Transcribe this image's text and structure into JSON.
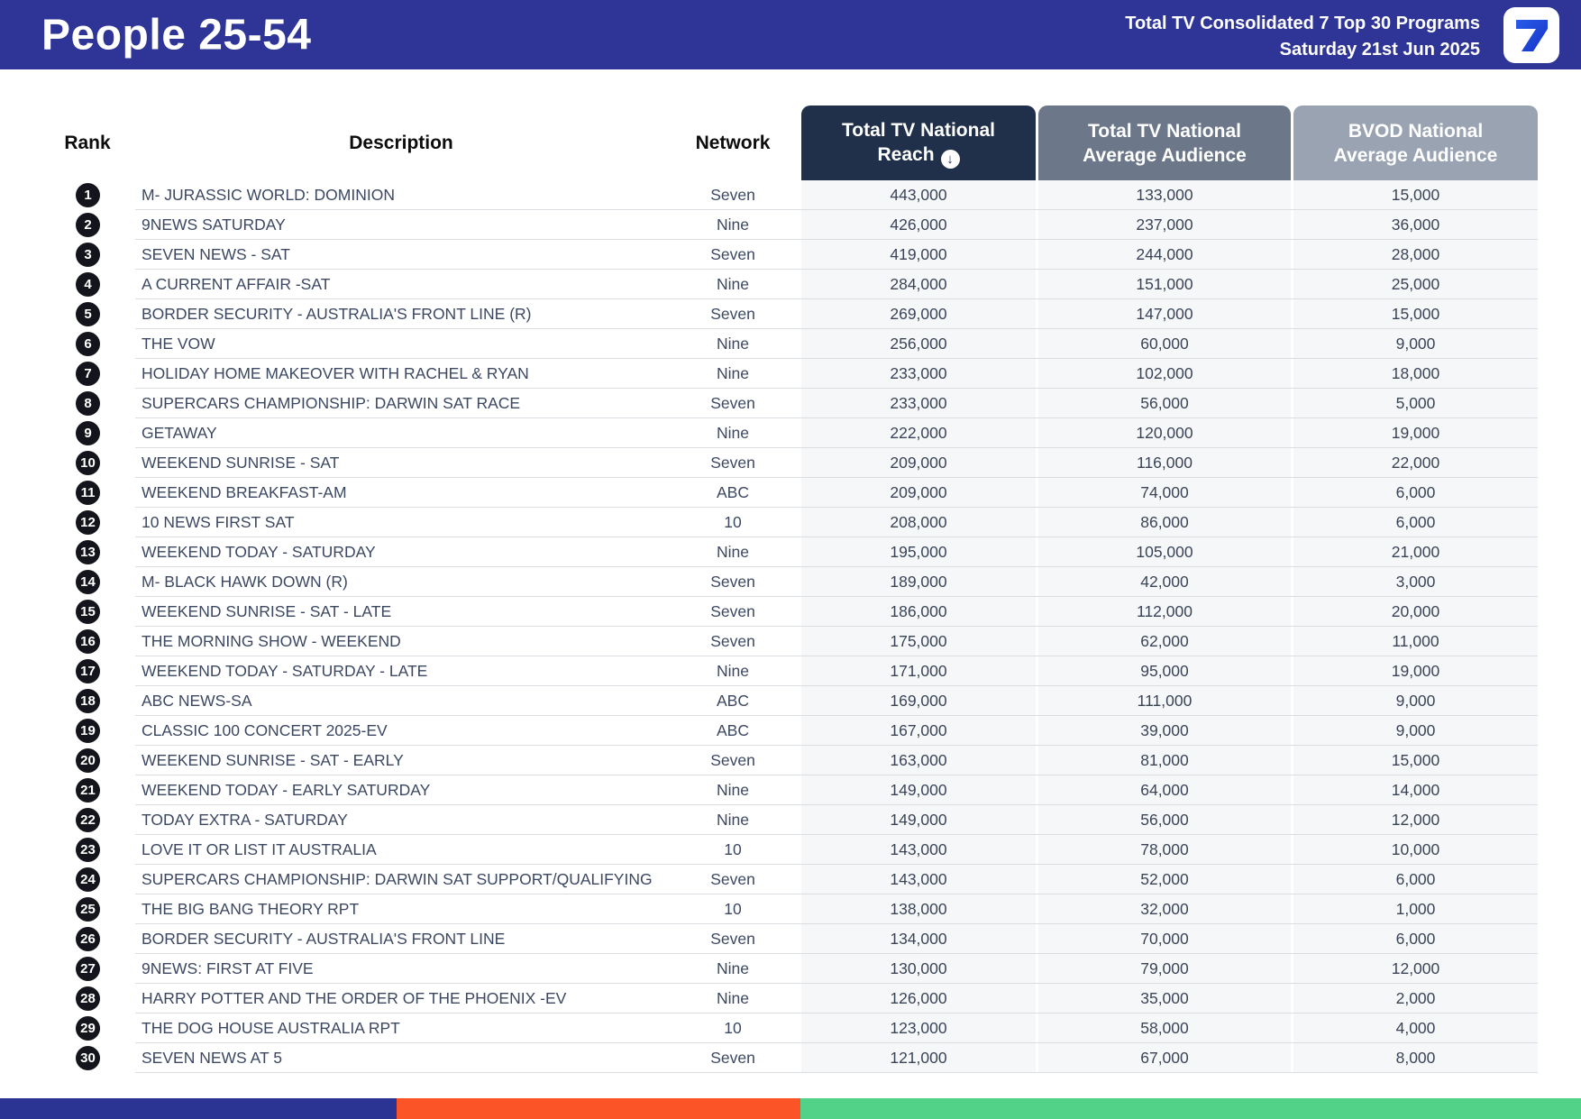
{
  "header": {
    "title": "People 25-54",
    "subtitle_line1": "Total TV Consolidated 7 Top 30 Programs",
    "subtitle_line2": "Saturday 21st Jun 2025",
    "logo_text": "7",
    "background_color": "#2E3596"
  },
  "table": {
    "columns": {
      "rank": "Rank",
      "description": "Description",
      "network": "Network",
      "reach_line1": "Total TV National",
      "reach_line2": "Reach",
      "avg_line1": "Total TV National",
      "avg_line2": "Average Audience",
      "bvod_line1": "BVOD National",
      "bvod_line2": "Average Audience"
    },
    "sort_icon": "circle-down-arrow",
    "sort_icon_glyph": "↓",
    "header_colors": {
      "reach": "#20304A",
      "avg": "#6C7889",
      "bvod": "#99A3B1"
    },
    "rows": [
      {
        "rank": "1",
        "description": "M- JURASSIC WORLD: DOMINION",
        "network": "Seven",
        "reach": "443,000",
        "avg": "133,000",
        "bvod": "15,000"
      },
      {
        "rank": "2",
        "description": "9NEWS SATURDAY",
        "network": "Nine",
        "reach": "426,000",
        "avg": "237,000",
        "bvod": "36,000"
      },
      {
        "rank": "3",
        "description": "SEVEN NEWS - SAT",
        "network": "Seven",
        "reach": "419,000",
        "avg": "244,000",
        "bvod": "28,000"
      },
      {
        "rank": "4",
        "description": "A CURRENT AFFAIR -SAT",
        "network": "Nine",
        "reach": "284,000",
        "avg": "151,000",
        "bvod": "25,000"
      },
      {
        "rank": "5",
        "description": "BORDER SECURITY - AUSTRALIA'S FRONT LINE (R)",
        "network": "Seven",
        "reach": "269,000",
        "avg": "147,000",
        "bvod": "15,000"
      },
      {
        "rank": "6",
        "description": "THE VOW",
        "network": "Nine",
        "reach": "256,000",
        "avg": "60,000",
        "bvod": "9,000"
      },
      {
        "rank": "7",
        "description": "HOLIDAY HOME MAKEOVER WITH RACHEL & RYAN",
        "network": "Nine",
        "reach": "233,000",
        "avg": "102,000",
        "bvod": "18,000"
      },
      {
        "rank": "8",
        "description": "SUPERCARS CHAMPIONSHIP: DARWIN SAT RACE",
        "network": "Seven",
        "reach": "233,000",
        "avg": "56,000",
        "bvod": "5,000"
      },
      {
        "rank": "9",
        "description": "GETAWAY",
        "network": "Nine",
        "reach": "222,000",
        "avg": "120,000",
        "bvod": "19,000"
      },
      {
        "rank": "10",
        "description": "WEEKEND SUNRISE - SAT",
        "network": "Seven",
        "reach": "209,000",
        "avg": "116,000",
        "bvod": "22,000"
      },
      {
        "rank": "11",
        "description": "WEEKEND BREAKFAST-AM",
        "network": "ABC",
        "reach": "209,000",
        "avg": "74,000",
        "bvod": "6,000"
      },
      {
        "rank": "12",
        "description": "10 NEWS FIRST SAT",
        "network": "10",
        "reach": "208,000",
        "avg": "86,000",
        "bvod": "6,000"
      },
      {
        "rank": "13",
        "description": "WEEKEND TODAY - SATURDAY",
        "network": "Nine",
        "reach": "195,000",
        "avg": "105,000",
        "bvod": "21,000"
      },
      {
        "rank": "14",
        "description": "M- BLACK HAWK DOWN (R)",
        "network": "Seven",
        "reach": "189,000",
        "avg": "42,000",
        "bvod": "3,000"
      },
      {
        "rank": "15",
        "description": "WEEKEND SUNRISE - SAT - LATE",
        "network": "Seven",
        "reach": "186,000",
        "avg": "112,000",
        "bvod": "20,000"
      },
      {
        "rank": "16",
        "description": "THE MORNING SHOW - WEEKEND",
        "network": "Seven",
        "reach": "175,000",
        "avg": "62,000",
        "bvod": "11,000"
      },
      {
        "rank": "17",
        "description": "WEEKEND TODAY - SATURDAY - LATE",
        "network": "Nine",
        "reach": "171,000",
        "avg": "95,000",
        "bvod": "19,000"
      },
      {
        "rank": "18",
        "description": "ABC NEWS-SA",
        "network": "ABC",
        "reach": "169,000",
        "avg": "111,000",
        "bvod": "9,000"
      },
      {
        "rank": "19",
        "description": "CLASSIC 100 CONCERT 2025-EV",
        "network": "ABC",
        "reach": "167,000",
        "avg": "39,000",
        "bvod": "9,000"
      },
      {
        "rank": "20",
        "description": "WEEKEND SUNRISE - SAT - EARLY",
        "network": "Seven",
        "reach": "163,000",
        "avg": "81,000",
        "bvod": "15,000"
      },
      {
        "rank": "21",
        "description": "WEEKEND TODAY - EARLY SATURDAY",
        "network": "Nine",
        "reach": "149,000",
        "avg": "64,000",
        "bvod": "14,000"
      },
      {
        "rank": "22",
        "description": "TODAY EXTRA - SATURDAY",
        "network": "Nine",
        "reach": "149,000",
        "avg": "56,000",
        "bvod": "12,000"
      },
      {
        "rank": "23",
        "description": "LOVE IT OR LIST IT AUSTRALIA",
        "network": "10",
        "reach": "143,000",
        "avg": "78,000",
        "bvod": "10,000"
      },
      {
        "rank": "24",
        "description": "SUPERCARS CHAMPIONSHIP: DARWIN SAT SUPPORT/QUALIFYING",
        "network": "Seven",
        "reach": "143,000",
        "avg": "52,000",
        "bvod": "6,000"
      },
      {
        "rank": "25",
        "description": "THE BIG BANG THEORY RPT",
        "network": "10",
        "reach": "138,000",
        "avg": "32,000",
        "bvod": "1,000"
      },
      {
        "rank": "26",
        "description": "BORDER SECURITY - AUSTRALIA'S FRONT LINE",
        "network": "Seven",
        "reach": "134,000",
        "avg": "70,000",
        "bvod": "6,000"
      },
      {
        "rank": "27",
        "description": "9NEWS: FIRST AT FIVE",
        "network": "Nine",
        "reach": "130,000",
        "avg": "79,000",
        "bvod": "12,000"
      },
      {
        "rank": "28",
        "description": "HARRY POTTER AND THE ORDER OF THE PHOENIX -EV",
        "network": "Nine",
        "reach": "126,000",
        "avg": "35,000",
        "bvod": "2,000"
      },
      {
        "rank": "29",
        "description": "THE DOG HOUSE AUSTRALIA RPT",
        "network": "10",
        "reach": "123,000",
        "avg": "58,000",
        "bvod": "4,000"
      },
      {
        "rank": "30",
        "description": "SEVEN NEWS AT 5",
        "network": "Seven",
        "reach": "121,000",
        "avg": "67,000",
        "bvod": "8,000"
      }
    ]
  },
  "footer": {
    "segments": [
      {
        "name": "blue",
        "color": "#2B3493",
        "width_pct": 25.1
      },
      {
        "name": "orange",
        "color": "#FB5426",
        "width_pct": 25.5
      },
      {
        "name": "green",
        "color": "#52D189",
        "width_pct": 49.4
      }
    ]
  }
}
